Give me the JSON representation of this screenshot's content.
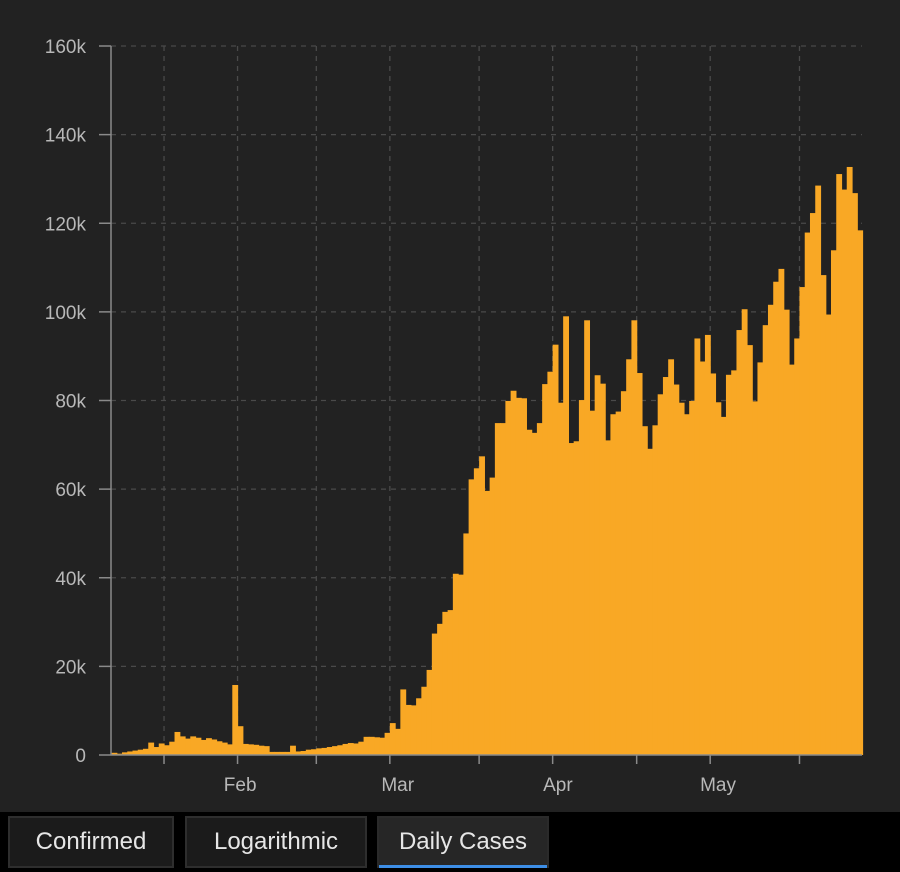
{
  "chart_data": {
    "type": "bar",
    "title": "",
    "xlabel": "",
    "ylabel": "",
    "ylim": [
      0,
      160000
    ],
    "y_ticks": [
      0,
      20000,
      40000,
      60000,
      80000,
      100000,
      120000,
      140000,
      160000
    ],
    "y_tick_labels": [
      "0",
      "20k",
      "40k",
      "60k",
      "80k",
      "100k",
      "120k",
      "140k",
      "160k"
    ],
    "x_month_labels": [
      "Feb",
      "Mar",
      "Apr",
      "May"
    ],
    "x_start_date": "2020-01-22",
    "grid": true,
    "series": [
      {
        "color": "#f9a825",
        "values": [
          500,
          300,
          600,
          800,
          1000,
          1200,
          1400,
          2800,
          1800,
          2600,
          2200,
          3000,
          5200,
          4200,
          3700,
          4200,
          3900,
          3400,
          3800,
          3500,
          3100,
          2800,
          2400,
          15800,
          6500,
          2500,
          2400,
          2300,
          2100,
          2000,
          700,
          700,
          700,
          700,
          2100,
          800,
          900,
          1200,
          1300,
          1500,
          1600,
          1800,
          2000,
          2200,
          2500,
          2700,
          2600,
          3000,
          4100,
          4100,
          4000,
          3900,
          5000,
          7200,
          5900,
          14800,
          11300,
          11200,
          12800,
          15400,
          19200,
          27400,
          29600,
          32300,
          32700,
          40900,
          40700,
          50000,
          62200,
          64700,
          67400,
          59600,
          62600,
          74900,
          74900,
          79900,
          82200,
          80600,
          80500,
          73400,
          72700,
          74900,
          83700,
          86500,
          92600,
          79500,
          99000,
          70400,
          70800,
          80100,
          98100,
          77700,
          85700,
          83800,
          71000,
          76900,
          77500,
          82100,
          89300,
          98100,
          86200,
          74200,
          69100,
          74400,
          81400,
          85300,
          89300,
          83600,
          79500,
          76900,
          79900,
          94000,
          88800,
          94800,
          86100,
          79600,
          76300,
          85800,
          86800,
          95900,
          100600,
          92500,
          79800,
          88600,
          97000,
          101600,
          106800,
          109700,
          100500,
          88100,
          94000,
          105600,
          117900,
          122300,
          128500,
          108300,
          99400,
          113900,
          131100,
          127600,
          132700,
          126800,
          118400
        ]
      }
    ]
  },
  "tabs": [
    {
      "label": "Confirmed",
      "active": false
    },
    {
      "label": "Logarithmic",
      "active": false
    },
    {
      "label": "Daily Cases",
      "active": true
    }
  ],
  "colors": {
    "background": "#222222",
    "bar": "#f9a825",
    "grid": "#4a4a4a",
    "axis": "#8a8a8a",
    "tick_text": "#b8b8b8",
    "active_tab_underline": "#3d8ee6"
  }
}
